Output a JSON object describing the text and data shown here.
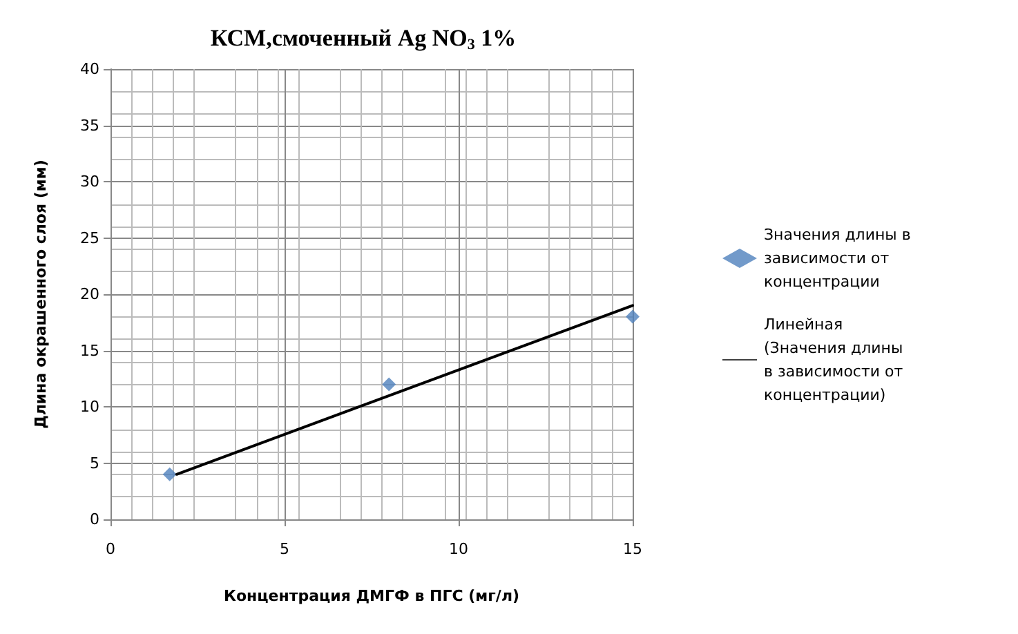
{
  "chart_data": {
    "type": "scatter",
    "title": "КСМ,смоченный Ag NO$_{3}$ 1%",
    "xlabel": "Концентрация ДМГФ в ПГС (мг/л)",
    "ylabel": "Длина окрашенного слоя (мм)",
    "xlim": [
      0,
      15
    ],
    "xticks": [
      0,
      5,
      10,
      15
    ],
    "ylim": [
      0,
      40
    ],
    "yticks": [
      0,
      5,
      10,
      15,
      20,
      25,
      30,
      35,
      40
    ],
    "grid": true,
    "legend": "right",
    "marker": "diamond",
    "series": [
      {
        "name": "Значения длины в зависимости от концентрации",
        "color": "#4f81bd",
        "x": [
          1.7,
          8,
          15
        ],
        "values": [
          4,
          12,
          18
        ]
      },
      {
        "type": "line",
        "name": "Линейная (Значения длины в зависимости от концентрации)",
        "color": "#000000",
        "marker": "none",
        "x": [
          1.9,
          15
        ],
        "values": [
          4,
          19
        ]
      }
    ]
  }
}
